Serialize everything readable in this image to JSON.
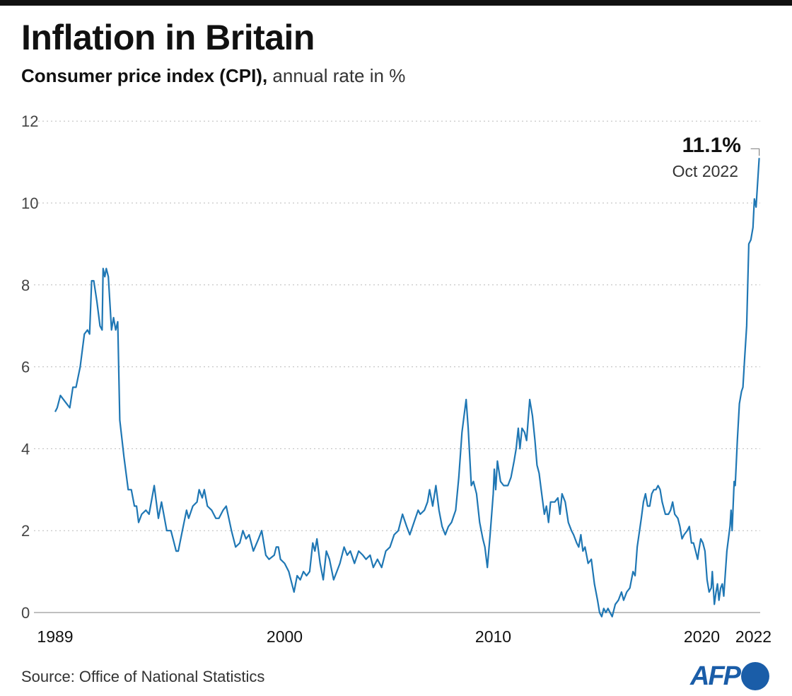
{
  "title": "Inflation in Britain",
  "subtitle_bold": "Consumer price index (CPI),",
  "subtitle_light": " annual rate in %",
  "source": "Source: Office of National Statistics",
  "logo": "AFP",
  "colors": {
    "line": "#1f77b4",
    "logo": "#1a5da8",
    "grid": "#bbbbbb"
  },
  "chart_data": {
    "type": "line",
    "title": "Inflation in Britain",
    "subtitle": "Consumer price index (CPI), annual rate in %",
    "ylim": [
      0,
      12
    ],
    "xlim": [
      1989,
      2022.83
    ],
    "yticks": [
      0,
      2,
      4,
      6,
      8,
      10,
      12
    ],
    "xticks": [
      {
        "value": 1989,
        "label": "1989"
      },
      {
        "value": 2000,
        "label": "2000"
      },
      {
        "value": 2010,
        "label": "2010"
      },
      {
        "value": 2020,
        "label": "2020"
      },
      {
        "value": 2022,
        "label": "2022"
      }
    ],
    "grid": "horizontal dotted",
    "annotation": {
      "value_label": "11.1%",
      "date_label": "Oct 2022",
      "x": 2022.75,
      "y": 11.1
    },
    "points": [
      [
        1989.0,
        4.9
      ],
      [
        1989.1,
        5.0
      ],
      [
        1989.25,
        5.3
      ],
      [
        1989.4,
        5.2
      ],
      [
        1989.55,
        5.1
      ],
      [
        1989.7,
        5.0
      ],
      [
        1989.85,
        5.5
      ],
      [
        1990.0,
        5.5
      ],
      [
        1990.2,
        6.0
      ],
      [
        1990.4,
        6.8
      ],
      [
        1990.55,
        6.9
      ],
      [
        1990.65,
        6.8
      ],
      [
        1990.75,
        8.1
      ],
      [
        1990.85,
        8.1
      ],
      [
        1991.0,
        7.6
      ],
      [
        1991.15,
        7.0
      ],
      [
        1991.25,
        6.9
      ],
      [
        1991.3,
        8.4
      ],
      [
        1991.38,
        8.2
      ],
      [
        1991.45,
        8.4
      ],
      [
        1991.55,
        8.2
      ],
      [
        1991.7,
        6.9
      ],
      [
        1991.8,
        7.2
      ],
      [
        1991.9,
        6.9
      ],
      [
        1992.0,
        7.1
      ],
      [
        1992.1,
        4.7
      ],
      [
        1992.3,
        3.8
      ],
      [
        1992.5,
        3.0
      ],
      [
        1992.65,
        3.0
      ],
      [
        1992.8,
        2.6
      ],
      [
        1992.9,
        2.6
      ],
      [
        1993.0,
        2.2
      ],
      [
        1993.15,
        2.4
      ],
      [
        1993.35,
        2.5
      ],
      [
        1993.5,
        2.4
      ],
      [
        1993.75,
        3.1
      ],
      [
        1993.95,
        2.3
      ],
      [
        1994.1,
        2.7
      ],
      [
        1994.35,
        2.0
      ],
      [
        1994.55,
        2.0
      ],
      [
        1994.7,
        1.7
      ],
      [
        1994.8,
        1.5
      ],
      [
        1994.9,
        1.5
      ],
      [
        1995.1,
        2.0
      ],
      [
        1995.3,
        2.5
      ],
      [
        1995.4,
        2.3
      ],
      [
        1995.6,
        2.6
      ],
      [
        1995.8,
        2.7
      ],
      [
        1995.9,
        3.0
      ],
      [
        1996.05,
        2.8
      ],
      [
        1996.15,
        3.0
      ],
      [
        1996.3,
        2.6
      ],
      [
        1996.5,
        2.5
      ],
      [
        1996.7,
        2.3
      ],
      [
        1996.85,
        2.3
      ],
      [
        1997.05,
        2.5
      ],
      [
        1997.2,
        2.6
      ],
      [
        1997.45,
        2.0
      ],
      [
        1997.65,
        1.6
      ],
      [
        1997.85,
        1.7
      ],
      [
        1998.0,
        2.0
      ],
      [
        1998.15,
        1.8
      ],
      [
        1998.3,
        1.9
      ],
      [
        1998.5,
        1.5
      ],
      [
        1998.75,
        1.8
      ],
      [
        1998.9,
        2.0
      ],
      [
        1999.1,
        1.4
      ],
      [
        1999.25,
        1.3
      ],
      [
        1999.5,
        1.4
      ],
      [
        1999.6,
        1.6
      ],
      [
        1999.7,
        1.6
      ],
      [
        1999.8,
        1.3
      ],
      [
        2000.0,
        1.2
      ],
      [
        2000.2,
        1.0
      ],
      [
        2000.35,
        0.7
      ],
      [
        2000.45,
        0.5
      ],
      [
        2000.6,
        0.9
      ],
      [
        2000.75,
        0.8
      ],
      [
        2000.9,
        1.0
      ],
      [
        2001.05,
        0.9
      ],
      [
        2001.2,
        1.0
      ],
      [
        2001.35,
        1.7
      ],
      [
        2001.45,
        1.5
      ],
      [
        2001.55,
        1.8
      ],
      [
        2001.7,
        1.2
      ],
      [
        2001.85,
        0.8
      ],
      [
        2002.0,
        1.5
      ],
      [
        2002.15,
        1.3
      ],
      [
        2002.35,
        0.8
      ],
      [
        2002.5,
        1.0
      ],
      [
        2002.65,
        1.2
      ],
      [
        2002.85,
        1.6
      ],
      [
        2003.0,
        1.4
      ],
      [
        2003.15,
        1.5
      ],
      [
        2003.35,
        1.2
      ],
      [
        2003.55,
        1.5
      ],
      [
        2003.75,
        1.4
      ],
      [
        2003.9,
        1.3
      ],
      [
        2004.1,
        1.4
      ],
      [
        2004.25,
        1.1
      ],
      [
        2004.45,
        1.3
      ],
      [
        2004.65,
        1.1
      ],
      [
        2004.85,
        1.5
      ],
      [
        2005.05,
        1.6
      ],
      [
        2005.25,
        1.9
      ],
      [
        2005.45,
        2.0
      ],
      [
        2005.65,
        2.4
      ],
      [
        2005.85,
        2.1
      ],
      [
        2006.0,
        1.9
      ],
      [
        2006.2,
        2.2
      ],
      [
        2006.4,
        2.5
      ],
      [
        2006.5,
        2.4
      ],
      [
        2006.7,
        2.5
      ],
      [
        2006.85,
        2.7
      ],
      [
        2006.95,
        3.0
      ],
      [
        2007.1,
        2.6
      ],
      [
        2007.25,
        3.1
      ],
      [
        2007.4,
        2.5
      ],
      [
        2007.55,
        2.1
      ],
      [
        2007.7,
        1.9
      ],
      [
        2007.85,
        2.1
      ],
      [
        2008.0,
        2.2
      ],
      [
        2008.2,
        2.5
      ],
      [
        2008.35,
        3.3
      ],
      [
        2008.5,
        4.4
      ],
      [
        2008.6,
        4.8
      ],
      [
        2008.7,
        5.2
      ],
      [
        2008.8,
        4.5
      ],
      [
        2008.95,
        3.1
      ],
      [
        2009.05,
        3.2
      ],
      [
        2009.2,
        2.9
      ],
      [
        2009.35,
        2.2
      ],
      [
        2009.5,
        1.8
      ],
      [
        2009.6,
        1.6
      ],
      [
        2009.72,
        1.1
      ],
      [
        2009.85,
        1.9
      ],
      [
        2010.0,
        2.9
      ],
      [
        2010.05,
        3.5
      ],
      [
        2010.12,
        3.0
      ],
      [
        2010.2,
        3.7
      ],
      [
        2010.35,
        3.2
      ],
      [
        2010.5,
        3.1
      ],
      [
        2010.7,
        3.1
      ],
      [
        2010.85,
        3.3
      ],
      [
        2011.0,
        3.7
      ],
      [
        2011.1,
        4.0
      ],
      [
        2011.2,
        4.5
      ],
      [
        2011.28,
        4.0
      ],
      [
        2011.38,
        4.5
      ],
      [
        2011.5,
        4.4
      ],
      [
        2011.6,
        4.2
      ],
      [
        2011.75,
        5.2
      ],
      [
        2011.88,
        4.8
      ],
      [
        2012.0,
        4.2
      ],
      [
        2012.1,
        3.6
      ],
      [
        2012.2,
        3.4
      ],
      [
        2012.3,
        3.0
      ],
      [
        2012.45,
        2.4
      ],
      [
        2012.55,
        2.6
      ],
      [
        2012.65,
        2.2
      ],
      [
        2012.75,
        2.7
      ],
      [
        2012.95,
        2.7
      ],
      [
        2013.1,
        2.8
      ],
      [
        2013.2,
        2.4
      ],
      [
        2013.3,
        2.9
      ],
      [
        2013.45,
        2.7
      ],
      [
        2013.6,
        2.2
      ],
      [
        2013.75,
        2.0
      ],
      [
        2013.85,
        1.9
      ],
      [
        2014.0,
        1.7
      ],
      [
        2014.1,
        1.6
      ],
      [
        2014.2,
        1.9
      ],
      [
        2014.3,
        1.5
      ],
      [
        2014.4,
        1.6
      ],
      [
        2014.55,
        1.2
      ],
      [
        2014.7,
        1.3
      ],
      [
        2014.85,
        0.7
      ],
      [
        2015.0,
        0.3
      ],
      [
        2015.1,
        0.0
      ],
      [
        2015.2,
        -0.1
      ],
      [
        2015.3,
        0.1
      ],
      [
        2015.4,
        0.0
      ],
      [
        2015.5,
        0.1
      ],
      [
        2015.6,
        0.0
      ],
      [
        2015.7,
        -0.1
      ],
      [
        2015.85,
        0.2
      ],
      [
        2016.0,
        0.3
      ],
      [
        2016.15,
        0.5
      ],
      [
        2016.25,
        0.3
      ],
      [
        2016.4,
        0.5
      ],
      [
        2016.55,
        0.6
      ],
      [
        2016.7,
        1.0
      ],
      [
        2016.8,
        0.9
      ],
      [
        2016.9,
        1.6
      ],
      [
        2017.1,
        2.3
      ],
      [
        2017.2,
        2.7
      ],
      [
        2017.3,
        2.9
      ],
      [
        2017.4,
        2.6
      ],
      [
        2017.5,
        2.6
      ],
      [
        2017.6,
        2.9
      ],
      [
        2017.7,
        3.0
      ],
      [
        2017.8,
        3.0
      ],
      [
        2017.9,
        3.1
      ],
      [
        2018.0,
        3.0
      ],
      [
        2018.1,
        2.7
      ],
      [
        2018.25,
        2.4
      ],
      [
        2018.4,
        2.4
      ],
      [
        2018.5,
        2.5
      ],
      [
        2018.6,
        2.7
      ],
      [
        2018.7,
        2.4
      ],
      [
        2018.85,
        2.3
      ],
      [
        2018.95,
        2.1
      ],
      [
        2019.05,
        1.8
      ],
      [
        2019.15,
        1.9
      ],
      [
        2019.3,
        2.0
      ],
      [
        2019.4,
        2.1
      ],
      [
        2019.5,
        1.7
      ],
      [
        2019.6,
        1.7
      ],
      [
        2019.7,
        1.5
      ],
      [
        2019.8,
        1.3
      ],
      [
        2019.85,
        1.5
      ],
      [
        2019.95,
        1.8
      ],
      [
        2020.05,
        1.7
      ],
      [
        2020.15,
        1.5
      ],
      [
        2020.25,
        0.8
      ],
      [
        2020.35,
        0.5
      ],
      [
        2020.45,
        0.6
      ],
      [
        2020.5,
        1.0
      ],
      [
        2020.6,
        0.2
      ],
      [
        2020.68,
        0.5
      ],
      [
        2020.75,
        0.7
      ],
      [
        2020.82,
        0.3
      ],
      [
        2020.9,
        0.6
      ],
      [
        2020.98,
        0.7
      ],
      [
        2021.05,
        0.4
      ],
      [
        2021.2,
        1.5
      ],
      [
        2021.35,
        2.1
      ],
      [
        2021.4,
        2.5
      ],
      [
        2021.45,
        2.0
      ],
      [
        2021.55,
        3.2
      ],
      [
        2021.6,
        3.1
      ],
      [
        2021.7,
        4.2
      ],
      [
        2021.8,
        5.1
      ],
      [
        2021.9,
        5.4
      ],
      [
        2021.97,
        5.5
      ],
      [
        2022.05,
        6.2
      ],
      [
        2022.15,
        7.0
      ],
      [
        2022.25,
        9.0
      ],
      [
        2022.35,
        9.1
      ],
      [
        2022.45,
        9.4
      ],
      [
        2022.52,
        10.1
      ],
      [
        2022.6,
        9.9
      ],
      [
        2022.75,
        11.1
      ]
    ]
  }
}
